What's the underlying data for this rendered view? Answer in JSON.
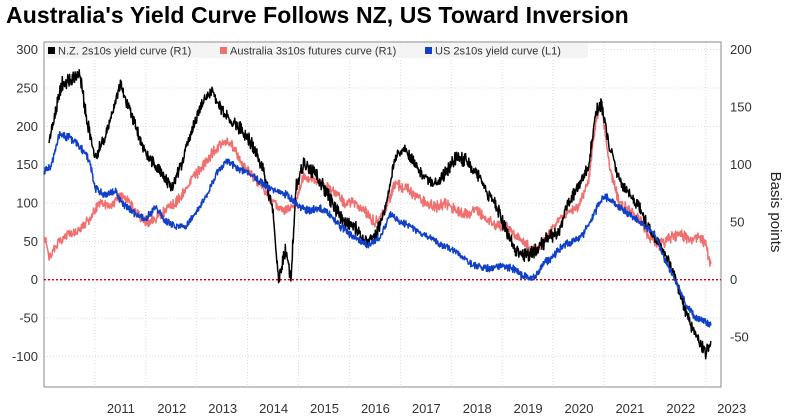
{
  "title": "Australia's Yield Curve Follows NZ, US Toward Inversion",
  "chart_data": {
    "type": "line",
    "title": "Australia's Yield Curve Follows NZ, US Toward Inversion",
    "left_axis": {
      "ylim": [
        -140,
        310
      ],
      "ticks": [
        300,
        250,
        200,
        150,
        100,
        50,
        0,
        -50,
        -100
      ]
    },
    "right_axis": {
      "label": "Basis points",
      "ylim": [
        -93.3,
        206.7
      ],
      "ticks": [
        200,
        150,
        100,
        50,
        0,
        -50
      ]
    },
    "x_axis": {
      "ticks": [
        "2011",
        "2012",
        "2013",
        "2014",
        "2015",
        "2016",
        "2017",
        "2018",
        "2019",
        "2020",
        "2021",
        "2022",
        "2023"
      ],
      "xlim": [
        2010.0,
        2023.3
      ]
    },
    "zero_line": {
      "value": 0,
      "color": "#cc0000",
      "style": "dotted"
    },
    "grid": true,
    "legend_position": "top",
    "series": [
      {
        "name": "N.Z. 2s10s yield curve (R1)",
        "color": "#000000",
        "points": [
          [
            2010.1,
            180
          ],
          [
            2010.35,
            255
          ],
          [
            2010.7,
            270
          ],
          [
            2010.85,
            205
          ],
          [
            2011.0,
            160
          ],
          [
            2011.2,
            185
          ],
          [
            2011.5,
            255
          ],
          [
            2011.8,
            200
          ],
          [
            2012.0,
            165
          ],
          [
            2012.3,
            140
          ],
          [
            2012.5,
            120
          ],
          [
            2012.7,
            150
          ],
          [
            2012.9,
            195
          ],
          [
            2013.1,
            230
          ],
          [
            2013.3,
            245
          ],
          [
            2013.5,
            220
          ],
          [
            2013.7,
            205
          ],
          [
            2013.9,
            195
          ],
          [
            2014.1,
            175
          ],
          [
            2014.3,
            145
          ],
          [
            2014.5,
            90
          ],
          [
            2014.6,
            0
          ],
          [
            2014.75,
            40
          ],
          [
            2014.85,
            0
          ],
          [
            2014.95,
            120
          ],
          [
            2015.1,
            150
          ],
          [
            2015.3,
            140
          ],
          [
            2015.5,
            120
          ],
          [
            2015.7,
            95
          ],
          [
            2015.9,
            75
          ],
          [
            2016.1,
            70
          ],
          [
            2016.3,
            50
          ],
          [
            2016.5,
            55
          ],
          [
            2016.7,
            90
          ],
          [
            2016.9,
            160
          ],
          [
            2017.1,
            170
          ],
          [
            2017.3,
            150
          ],
          [
            2017.5,
            130
          ],
          [
            2017.7,
            125
          ],
          [
            2017.9,
            140
          ],
          [
            2018.1,
            160
          ],
          [
            2018.3,
            155
          ],
          [
            2018.5,
            140
          ],
          [
            2018.7,
            115
          ],
          [
            2018.9,
            95
          ],
          [
            2019.1,
            60
          ],
          [
            2019.3,
            35
          ],
          [
            2019.5,
            30
          ],
          [
            2019.7,
            40
          ],
          [
            2019.9,
            55
          ],
          [
            2020.1,
            60
          ],
          [
            2020.3,
            100
          ],
          [
            2020.5,
            120
          ],
          [
            2020.7,
            150
          ],
          [
            2020.85,
            220
          ],
          [
            2020.95,
            230
          ],
          [
            2021.1,
            175
          ],
          [
            2021.3,
            130
          ],
          [
            2021.5,
            110
          ],
          [
            2021.7,
            95
          ],
          [
            2021.9,
            65
          ],
          [
            2022.1,
            45
          ],
          [
            2022.3,
            20
          ],
          [
            2022.5,
            -20
          ],
          [
            2022.7,
            -60
          ],
          [
            2022.9,
            -85
          ],
          [
            2023.0,
            -95
          ],
          [
            2023.1,
            -80
          ]
        ]
      },
      {
        "name": "Australia 3s10s futures curve (R1)",
        "color": "#f07070",
        "points": [
          [
            2010.0,
            60
          ],
          [
            2010.1,
            30
          ],
          [
            2010.3,
            50
          ],
          [
            2010.5,
            60
          ],
          [
            2010.7,
            65
          ],
          [
            2010.9,
            80
          ],
          [
            2011.1,
            100
          ],
          [
            2011.3,
            95
          ],
          [
            2011.5,
            110
          ],
          [
            2011.7,
            100
          ],
          [
            2011.9,
            80
          ],
          [
            2012.1,
            75
          ],
          [
            2012.3,
            85
          ],
          [
            2012.5,
            95
          ],
          [
            2012.7,
            110
          ],
          [
            2012.9,
            130
          ],
          [
            2013.1,
            145
          ],
          [
            2013.3,
            165
          ],
          [
            2013.5,
            180
          ],
          [
            2013.7,
            175
          ],
          [
            2013.9,
            150
          ],
          [
            2014.1,
            135
          ],
          [
            2014.3,
            120
          ],
          [
            2014.5,
            100
          ],
          [
            2014.7,
            90
          ],
          [
            2014.9,
            95
          ],
          [
            2015.1,
            135
          ],
          [
            2015.3,
            130
          ],
          [
            2015.5,
            125
          ],
          [
            2015.7,
            115
          ],
          [
            2015.9,
            100
          ],
          [
            2016.1,
            100
          ],
          [
            2016.3,
            90
          ],
          [
            2016.5,
            75
          ],
          [
            2016.7,
            90
          ],
          [
            2016.9,
            125
          ],
          [
            2017.1,
            120
          ],
          [
            2017.3,
            110
          ],
          [
            2017.5,
            100
          ],
          [
            2017.7,
            95
          ],
          [
            2017.9,
            100
          ],
          [
            2018.1,
            90
          ],
          [
            2018.3,
            85
          ],
          [
            2018.5,
            90
          ],
          [
            2018.7,
            80
          ],
          [
            2018.9,
            70
          ],
          [
            2019.1,
            70
          ],
          [
            2019.3,
            55
          ],
          [
            2019.5,
            45
          ],
          [
            2019.7,
            40
          ],
          [
            2019.9,
            60
          ],
          [
            2020.1,
            75
          ],
          [
            2020.3,
            90
          ],
          [
            2020.5,
            95
          ],
          [
            2020.7,
            130
          ],
          [
            2020.85,
            210
          ],
          [
            2020.95,
            230
          ],
          [
            2021.1,
            150
          ],
          [
            2021.3,
            100
          ],
          [
            2021.5,
            90
          ],
          [
            2021.7,
            80
          ],
          [
            2021.9,
            55
          ],
          [
            2022.1,
            45
          ],
          [
            2022.3,
            55
          ],
          [
            2022.5,
            60
          ],
          [
            2022.7,
            50
          ],
          [
            2022.9,
            55
          ],
          [
            2023.0,
            45
          ],
          [
            2023.1,
            20
          ]
        ]
      },
      {
        "name": "US 2s10s yield curve (L1)",
        "color": "#1040c8",
        "points": [
          [
            2010.0,
            140
          ],
          [
            2010.15,
            150
          ],
          [
            2010.3,
            190
          ],
          [
            2010.5,
            185
          ],
          [
            2010.7,
            175
          ],
          [
            2010.9,
            155
          ],
          [
            2011.0,
            120
          ],
          [
            2011.2,
            110
          ],
          [
            2011.4,
            115
          ],
          [
            2011.6,
            95
          ],
          [
            2011.8,
            85
          ],
          [
            2012.0,
            80
          ],
          [
            2012.2,
            95
          ],
          [
            2012.4,
            75
          ],
          [
            2012.6,
            70
          ],
          [
            2012.8,
            70
          ],
          [
            2013.0,
            90
          ],
          [
            2013.2,
            110
          ],
          [
            2013.4,
            140
          ],
          [
            2013.6,
            155
          ],
          [
            2013.8,
            145
          ],
          [
            2014.0,
            140
          ],
          [
            2014.2,
            130
          ],
          [
            2014.4,
            120
          ],
          [
            2014.6,
            115
          ],
          [
            2014.8,
            110
          ],
          [
            2015.0,
            95
          ],
          [
            2015.2,
            90
          ],
          [
            2015.4,
            95
          ],
          [
            2015.6,
            85
          ],
          [
            2015.8,
            70
          ],
          [
            2016.0,
            60
          ],
          [
            2016.2,
            50
          ],
          [
            2016.4,
            45
          ],
          [
            2016.6,
            55
          ],
          [
            2016.8,
            85
          ],
          [
            2017.0,
            75
          ],
          [
            2017.2,
            70
          ],
          [
            2017.4,
            60
          ],
          [
            2017.6,
            55
          ],
          [
            2017.8,
            45
          ],
          [
            2018.0,
            40
          ],
          [
            2018.2,
            30
          ],
          [
            2018.4,
            20
          ],
          [
            2018.6,
            15
          ],
          [
            2018.8,
            15
          ],
          [
            2019.0,
            18
          ],
          [
            2019.2,
            15
          ],
          [
            2019.4,
            5
          ],
          [
            2019.6,
            0
          ],
          [
            2019.8,
            20
          ],
          [
            2020.0,
            30
          ],
          [
            2020.2,
            45
          ],
          [
            2020.4,
            50
          ],
          [
            2020.6,
            60
          ],
          [
            2020.8,
            85
          ],
          [
            2021.0,
            110
          ],
          [
            2021.2,
            100
          ],
          [
            2021.4,
            90
          ],
          [
            2021.6,
            80
          ],
          [
            2021.8,
            70
          ],
          [
            2022.0,
            60
          ],
          [
            2022.2,
            25
          ],
          [
            2022.4,
            0
          ],
          [
            2022.6,
            -30
          ],
          [
            2022.8,
            -50
          ],
          [
            2023.0,
            -55
          ],
          [
            2023.1,
            -60
          ]
        ]
      }
    ]
  }
}
